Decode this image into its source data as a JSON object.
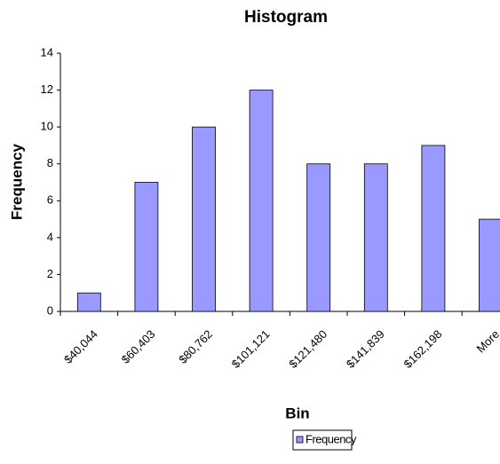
{
  "chart_data": {
    "type": "bar",
    "title": "Histogram",
    "x_label": "Bin",
    "y_label": "Frequency",
    "categories": [
      "$40,044",
      "$60,403",
      "$80,762",
      "$101,121",
      "$121,480",
      "$141,839",
      "$162,198",
      "More"
    ],
    "series": [
      {
        "name": "Frequency",
        "color": "#9999ff",
        "values": [
          1,
          7,
          10,
          12,
          8,
          8,
          9,
          5
        ]
      }
    ],
    "ylim": [
      0,
      14
    ],
    "yticks": [
      0,
      2,
      4,
      6,
      8,
      10,
      12,
      14
    ],
    "grid": false,
    "legend": "bottom"
  }
}
